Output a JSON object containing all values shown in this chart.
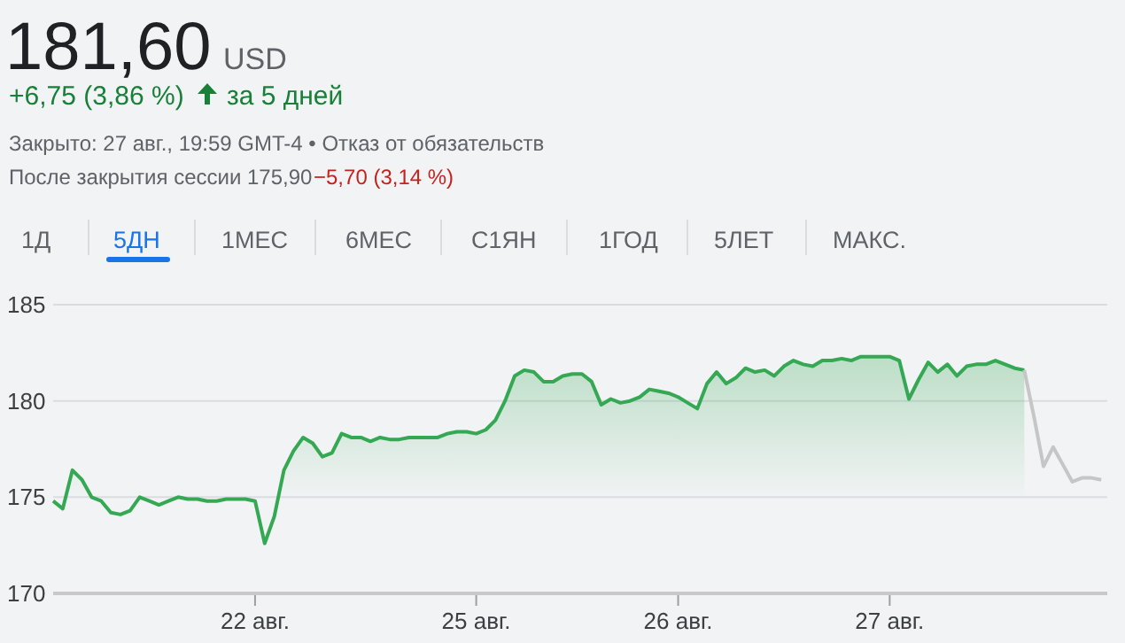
{
  "chart_data": {
    "type": "area",
    "title": "181,60",
    "annotations": [
      "USD",
      "+6,75 (3,86 %)",
      "за 5 дней",
      "Закрыто: 27 авг., 19:59 GMT-4 • Отказ от обязательств",
      "После закрытия сессии 175,90",
      "−5,70 (3,14 %)",
      "1Д",
      "5ДН",
      "1МЕС",
      "6МЕС",
      "С1ЯН",
      "1ГОД",
      "5ЛЕТ",
      "МАКС."
    ],
    "categories": [
      null,
      null,
      null,
      null,
      null,
      null,
      null,
      null,
      null,
      null,
      null,
      null,
      null,
      null,
      null,
      null,
      null,
      null,
      null,
      null,
      null,
      "22 авг.",
      null,
      null,
      null,
      null,
      null,
      null,
      null,
      null,
      null,
      null,
      null,
      null,
      null,
      null,
      null,
      null,
      null,
      null,
      null,
      null,
      null,
      null,
      "25 авг.",
      null,
      null,
      null,
      null,
      null,
      null,
      null,
      null,
      null,
      null,
      null,
      null,
      null,
      null,
      null,
      null,
      null,
      null,
      null,
      null,
      "26 авг.",
      null,
      null,
      null,
      null,
      null,
      null,
      null,
      null,
      null,
      null,
      null,
      null,
      null,
      null,
      null,
      null,
      null,
      null,
      null,
      null,
      null,
      "27 авг.",
      null,
      null,
      null,
      null,
      null,
      null,
      null,
      null,
      null,
      null,
      null,
      null,
      null,
      null,
      null,
      null,
      null,
      null,
      null,
      null,
      null,
      null
    ],
    "series": [
      {
        "color": "#34a853",
        "values": [
          174.8,
          174.4,
          176.4,
          175.9,
          175.0,
          174.8,
          174.2,
          174.1,
          174.3,
          175.0,
          174.8,
          174.6,
          174.8,
          175.0,
          174.9,
          174.9,
          174.8,
          174.8,
          174.9,
          174.9,
          174.9,
          174.8,
          172.6,
          174.0,
          176.4,
          177.4,
          178.1,
          177.8,
          177.1,
          177.3,
          178.3,
          178.1,
          178.1,
          177.9,
          178.1,
          178.0,
          178.0,
          178.1,
          178.1,
          178.1,
          178.1,
          178.3,
          178.4,
          178.4,
          178.3,
          178.5,
          179.0,
          180.0,
          181.3,
          181.6,
          181.5,
          181.0,
          181.0,
          181.3,
          181.4,
          181.4,
          181.0,
          179.8,
          180.1,
          179.9,
          180.0,
          180.2,
          180.6,
          180.5,
          180.4,
          180.2,
          179.9,
          179.6,
          180.9,
          181.5,
          180.9,
          181.2,
          181.7,
          181.5,
          181.6,
          181.3,
          181.8,
          182.1,
          181.9,
          181.8,
          182.1,
          182.1,
          182.2,
          182.1,
          182.3,
          182.3,
          182.3,
          182.3,
          182.1,
          180.1,
          181.1,
          182.0,
          181.5,
          181.9,
          181.3,
          181.8,
          181.9,
          181.9,
          182.1,
          181.9,
          181.7,
          181.6,
          null,
          null,
          null,
          null,
          null,
          null,
          null,
          null
        ]
      },
      {
        "type": "line",
        "color": "#c6c6c6",
        "values": [
          null,
          null,
          null,
          null,
          null,
          null,
          null,
          null,
          null,
          null,
          null,
          null,
          null,
          null,
          null,
          null,
          null,
          null,
          null,
          null,
          null,
          null,
          null,
          null,
          null,
          null,
          null,
          null,
          null,
          null,
          null,
          null,
          null,
          null,
          null,
          null,
          null,
          null,
          null,
          null,
          null,
          null,
          null,
          null,
          null,
          null,
          null,
          null,
          null,
          null,
          null,
          null,
          null,
          null,
          null,
          null,
          null,
          null,
          null,
          null,
          null,
          null,
          null,
          null,
          null,
          null,
          null,
          null,
          null,
          null,
          null,
          null,
          null,
          null,
          null,
          null,
          null,
          null,
          null,
          null,
          null,
          null,
          null,
          null,
          null,
          null,
          null,
          null,
          null,
          null,
          null,
          null,
          null,
          null,
          null,
          null,
          null,
          null,
          null,
          null,
          null,
          181.6,
          179.2,
          176.6,
          177.6,
          176.7,
          175.8,
          176.0,
          176.0,
          175.9
        ]
      }
    ],
    "ylim": [
      170,
      185
    ],
    "yticks": [
      170,
      175,
      180,
      185
    ],
    "grid": "y"
  }
}
